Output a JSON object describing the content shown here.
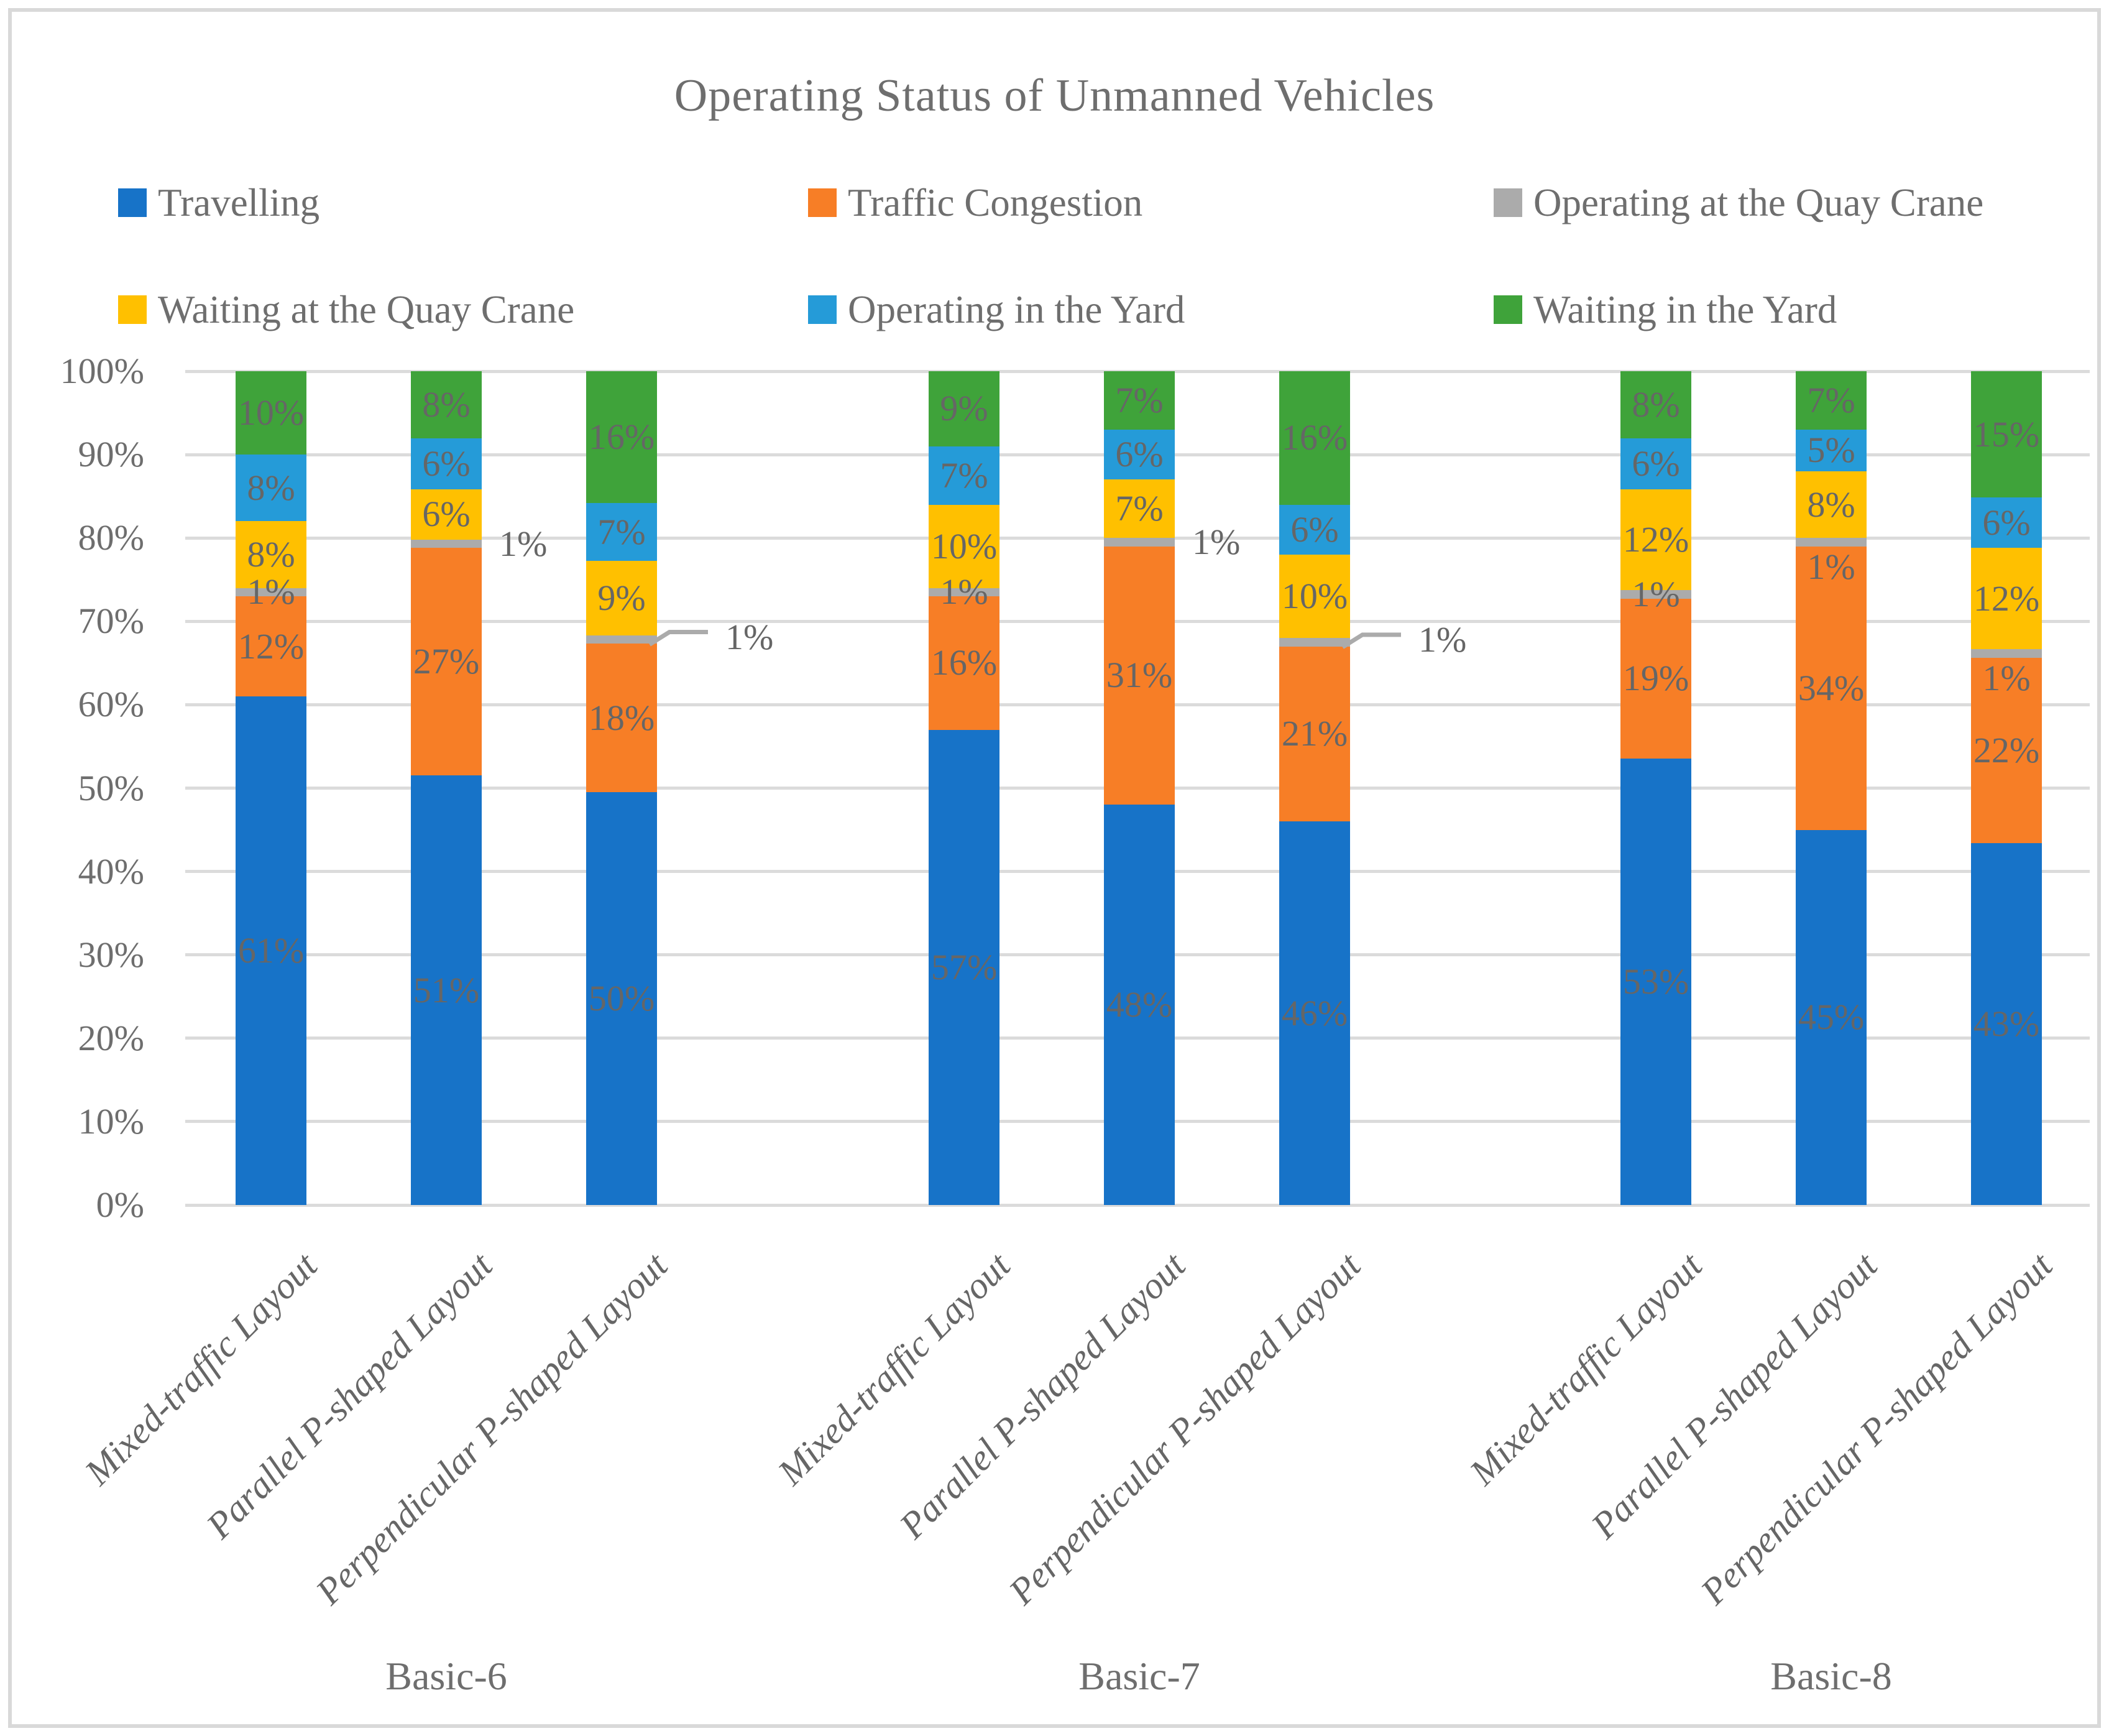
{
  "title": "Operating Status of Unmanned Vehicles",
  "colors": {
    "travelling": "#1773C8",
    "traffic_congestion": "#F77E26",
    "operating_quay_crane": "#ABABAB",
    "waiting_quay_crane": "#FFC000",
    "operating_yard": "#259BD8",
    "waiting_yard": "#3FA33A",
    "gridline": "#DBDBDB",
    "frame": "#D9D9D9",
    "axis_text": "#6E6E6E",
    "data_label_text": "#666666",
    "leader_line": "#ABABAB"
  },
  "y_axis": {
    "ticks": [
      "0%",
      "10%",
      "20%",
      "30%",
      "40%",
      "50%",
      "60%",
      "70%",
      "80%",
      "90%",
      "100%"
    ]
  },
  "chart_data": {
    "type": "bar",
    "stacked": true,
    "grid": true,
    "legend_position": "top",
    "value_format": "percent",
    "ylim": [
      0,
      100
    ],
    "title": "Operating Status of Unmanned Vehicles",
    "group_labels": [
      "Basic-6",
      "Basic-7",
      "Basic-8"
    ],
    "categories": [
      "Mixed-traffic Layout",
      "Parallel P-shaped Layout",
      "Perpendicular P-shaped Layout"
    ],
    "series": [
      {
        "name": "Travelling",
        "color_key": "travelling",
        "values": [
          61,
          51,
          50,
          57,
          48,
          46,
          53,
          45,
          43
        ]
      },
      {
        "name": "Traffic Congestion",
        "color_key": "traffic_congestion",
        "values": [
          12,
          27,
          18,
          16,
          31,
          21,
          19,
          34,
          22
        ]
      },
      {
        "name": "Operating at the Quay Crane",
        "color_key": "operating_quay_crane",
        "values": [
          1,
          1,
          1,
          1,
          1,
          1,
          1,
          1,
          1
        ]
      },
      {
        "name": "Waiting at the Quay Crane",
        "color_key": "waiting_quay_crane",
        "values": [
          8,
          6,
          9,
          10,
          7,
          10,
          12,
          8,
          12
        ]
      },
      {
        "name": "Operating in the Yard",
        "color_key": "operating_yard",
        "values": [
          8,
          6,
          7,
          7,
          6,
          6,
          6,
          5,
          6
        ]
      },
      {
        "name": "Waiting in the Yard",
        "color_key": "waiting_yard",
        "values": [
          10,
          8,
          16,
          9,
          7,
          16,
          8,
          7,
          15
        ]
      }
    ],
    "data_label_suffix": "%",
    "gray_label_modes": [
      "on",
      "right",
      "leader",
      "on",
      "right",
      "leader",
      "on",
      "below",
      "below"
    ]
  },
  "legend": {
    "rows": [
      [
        {
          "label": "Travelling",
          "color_key": "travelling"
        },
        {
          "label": "Traffic Congestion",
          "color_key": "traffic_congestion"
        },
        {
          "label": "Operating at the Quay Crane",
          "color_key": "operating_quay_crane"
        }
      ],
      [
        {
          "label": "Waiting at the Quay Crane",
          "color_key": "waiting_quay_crane"
        },
        {
          "label": "Operating in the Yard",
          "color_key": "operating_yard"
        },
        {
          "label": "Waiting in the Yard",
          "color_key": "waiting_yard"
        }
      ]
    ]
  }
}
